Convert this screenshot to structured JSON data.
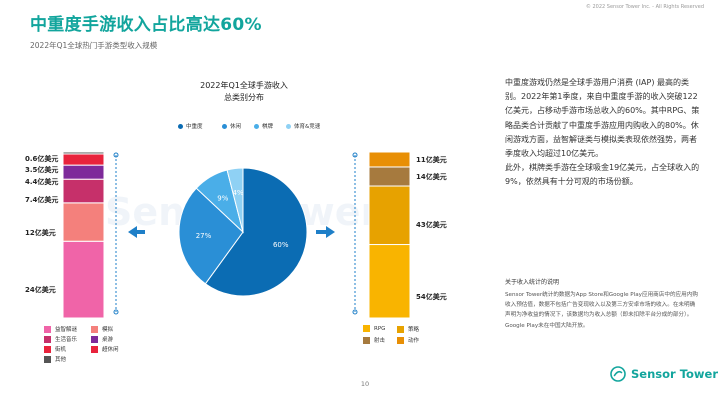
{
  "copyright": "© 2022 Sensor Tower Inc. - All Rights Reserved",
  "title": "中重度手游收入占比高达60%",
  "subtitle": "2022年Q1全球热门手游类型收入规模",
  "chart_title_line1": "2022年Q1全球手游收入",
  "chart_title_line2": "总类别分布",
  "watermark": "SensorTower",
  "colors": {
    "midcore": "#0b6cb3",
    "casual": "#2a8fd6",
    "chess": "#4aaee8",
    "sports": "#8fd1f4",
    "puzzle": "#f064a8",
    "sim": "#f4807c",
    "lifestyle_music": "#c6306a",
    "board": "#7e2a9a",
    "arcade": "#e8233c",
    "other": "#555555",
    "rpg": "#f9b400",
    "strategy": "#e7a200",
    "shooter": "#a67a3e",
    "action": "#e88f05",
    "accent": "#12a59d"
  },
  "chart_data": [
    {
      "type": "pie",
      "title": "2022年Q1全球手游收入\n总类别分布",
      "categories": [
        "中重度",
        "休闲",
        "棋牌",
        "体育&竞速"
      ],
      "values": [
        60,
        27,
        9,
        4
      ],
      "value_labels": [
        "60%",
        "27%",
        "9%",
        "4%"
      ],
      "legend_position": "top"
    },
    {
      "type": "bar",
      "stacked": true,
      "title": "",
      "unit": "亿美元",
      "series": [
        {
          "name": "益智解谜",
          "values": [
            24
          ]
        },
        {
          "name": "模拟",
          "values": [
            12
          ]
        },
        {
          "name": "生活音乐",
          "values": [
            7.4
          ]
        },
        {
          "name": "桌游",
          "values": [
            4.4
          ]
        },
        {
          "name": "街机",
          "values": [
            3.5
          ]
        },
        {
          "name": "超休闲",
          "values": [
            0
          ]
        },
        {
          "name": "其他",
          "values": [
            0.6
          ]
        }
      ],
      "value_labels": [
        "24亿美元",
        "12亿美元",
        "7.4亿美元",
        "4.4亿美元",
        "3.5亿美元",
        "0.6亿美元"
      ]
    },
    {
      "type": "bar",
      "stacked": true,
      "title": "",
      "unit": "亿美元",
      "series": [
        {
          "name": "RPG",
          "values": [
            54
          ]
        },
        {
          "name": "策略",
          "values": [
            43
          ]
        },
        {
          "name": "射击",
          "values": [
            14
          ]
        },
        {
          "name": "动作",
          "values": [
            11
          ]
        }
      ],
      "value_labels": [
        "54亿美元",
        "43亿美元",
        "14亿美元",
        "11亿美元"
      ]
    }
  ],
  "pie_legend": [
    "中重度",
    "休闲",
    "棋牌",
    "体育&竞速"
  ],
  "left_legend": [
    {
      "label": "益智解谜",
      "key": "puzzle"
    },
    {
      "label": "模拟",
      "key": "sim"
    },
    {
      "label": "生活音乐",
      "key": "lifestyle_music"
    },
    {
      "label": "桌游",
      "key": "board"
    },
    {
      "label": "街机",
      "key": "arcade"
    },
    {
      "label": "超休闲",
      "key": "arcade"
    },
    {
      "label": "其他",
      "key": "other"
    }
  ],
  "right_legend": [
    {
      "label": "RPG",
      "key": "rpg"
    },
    {
      "label": "策略",
      "key": "strategy"
    },
    {
      "label": "射击",
      "key": "shooter"
    },
    {
      "label": "动作",
      "key": "action"
    }
  ],
  "body_p1": "中重度游戏仍然是全球手游用户消费 (IAP) 最高的类别。2022年第1季度，来自中重度手游的收入突破122亿美元，占移动手游市场总收入的60%。其中RPG、策略品类合计贡献了中重度手游应用内购收入的80%。休闲游戏方面，益智解谜类与模拟类表现依然强势，两者季度收入均超过10亿美元。",
  "body_p2": "此外，棋牌类手游在全球吸金19亿美元，占全球收入的9%，依然具有十分可观的市场份额。",
  "note_title": "关于收入统计的说明",
  "note_text": "Sensor Tower统计的数据为App Store和Google Play应用商店中的应用内购收入预估值，数据不包括广告变现收入以及第三方安卓市场的收入。在未明确声明为净收益的情况下，该数据均为收入总额（即未扣除平台分成的部分）。Google Play未在中国大陆开放。",
  "page_number": "10",
  "brand": "Sensor Tower"
}
